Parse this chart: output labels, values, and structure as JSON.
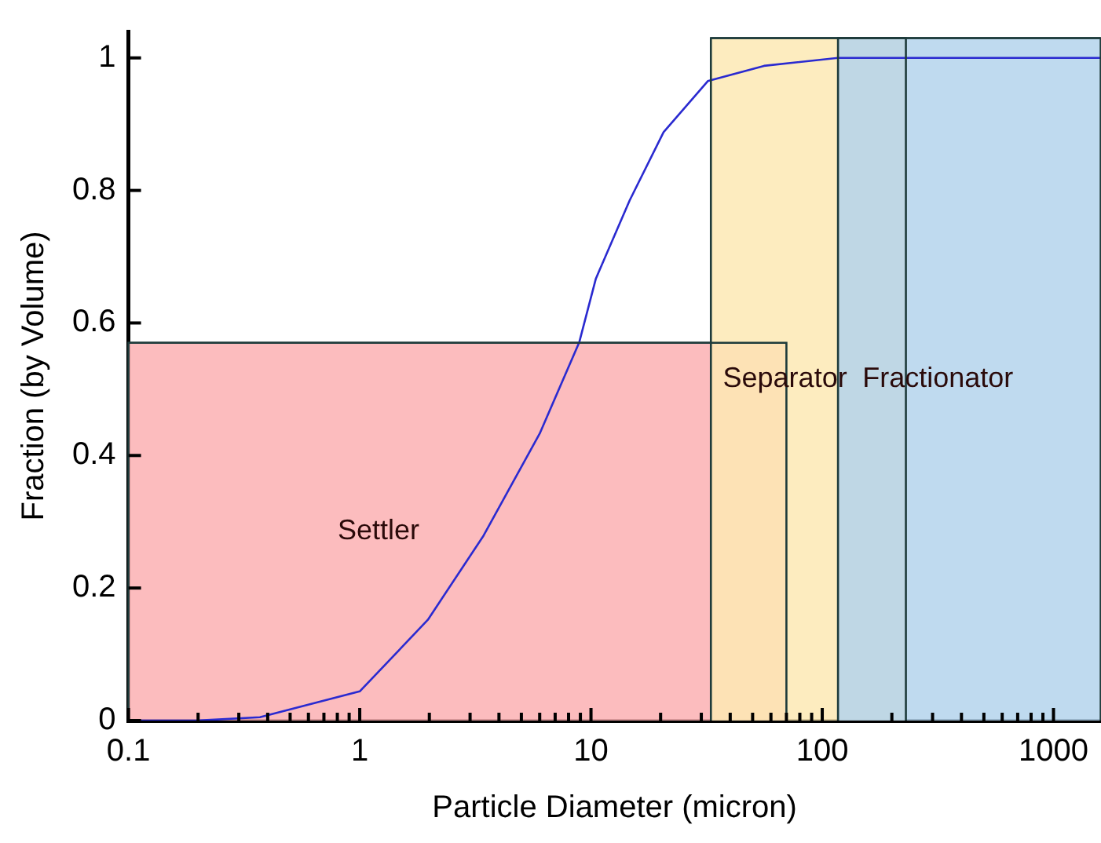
{
  "chart_data": {
    "type": "line",
    "xlabel": "Particle Diameter (micron)",
    "ylabel": "Fraction (by Volume)",
    "log": "x",
    "xlim": [
      0.1,
      1600
    ],
    "ylim": [
      0,
      1.04
    ],
    "xticks": [
      0.1,
      {
        "value": 0.2,
        "label": null
      },
      {
        "value": 0.3,
        "label": null
      },
      {
        "value": 0.4,
        "label": null
      },
      {
        "value": 0.5,
        "label": null
      },
      {
        "value": 0.6,
        "label": null
      },
      {
        "value": 0.7,
        "label": null
      },
      {
        "value": 0.8,
        "label": null
      },
      {
        "value": 0.9,
        "label": null
      },
      1,
      {
        "value": 2,
        "label": null
      },
      {
        "value": 3,
        "label": null
      },
      {
        "value": 4,
        "label": null
      },
      {
        "value": 5,
        "label": null
      },
      {
        "value": 6,
        "label": null
      },
      {
        "value": 7,
        "label": null
      },
      {
        "value": 8,
        "label": null
      },
      {
        "value": 9,
        "label": null
      },
      10,
      {
        "value": 20,
        "label": null
      },
      {
        "value": 30,
        "label": null
      },
      {
        "value": 40,
        "label": null
      },
      {
        "value": 50,
        "label": null
      },
      {
        "value": 60,
        "label": null
      },
      {
        "value": 70,
        "label": null
      },
      {
        "value": 80,
        "label": null
      },
      {
        "value": 90,
        "label": null
      },
      100,
      {
        "value": 200,
        "label": null
      },
      {
        "value": 300,
        "label": null
      },
      {
        "value": 400,
        "label": null
      },
      {
        "value": 500,
        "label": null
      },
      {
        "value": 600,
        "label": null
      },
      {
        "value": 700,
        "label": null
      },
      {
        "value": 800,
        "label": null
      },
      {
        "value": 900,
        "label": null
      },
      1000
    ],
    "yticks": [
      0,
      0.2,
      0.4,
      0.6,
      0.8,
      1
    ],
    "grid": false,
    "legend": false,
    "marker": "none",
    "line_style": "solid",
    "series": [
      {
        "color": "#2a2ad0",
        "x": [
          0.1,
          0.2,
          0.37,
          1.0,
          1.97,
          3.43,
          6.0,
          8.9,
          10.5,
          14.7,
          20.6,
          32,
          56,
          117,
          300,
          1600
        ],
        "values": [
          0,
          0,
          0.005,
          0.044,
          0.152,
          0.279,
          0.433,
          0.571,
          0.667,
          0.785,
          0.888,
          0.965,
          0.988,
          1,
          1,
          1
        ]
      },
      {
        "type": "area",
        "name": "Settler",
        "color": "#fbb0b2",
        "x": [
          0.1,
          70
        ],
        "values": [
          0.57,
          0.57
        ]
      },
      {
        "type": "area",
        "name": "Separator",
        "color": "#fde9b3",
        "x": [
          33,
          230
        ],
        "values": [
          1.03,
          1.03
        ]
      },
      {
        "type": "area",
        "name": "Fractionator",
        "color": "#b3d3ec",
        "x": [
          117,
          1600
        ],
        "values": [
          1.03,
          1.03
        ]
      }
    ]
  }
}
